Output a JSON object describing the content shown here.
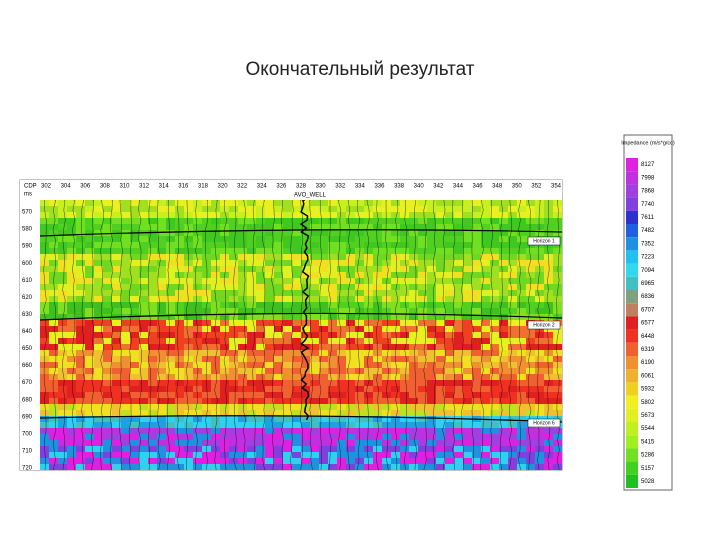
{
  "title": "Окончательный результат",
  "section": {
    "cdp_label": "CDP",
    "time_unit": "ms",
    "cdp_labels": [
      "302",
      "304",
      "306",
      "308",
      "310",
      "312",
      "314",
      "316",
      "318",
      "320",
      "322",
      "324",
      "326",
      "328",
      "330",
      "332",
      "334",
      "336",
      "338",
      "340",
      "342",
      "344",
      "346",
      "348",
      "350",
      "352",
      "354"
    ],
    "time_labels": [
      "570",
      "580",
      "590",
      "600",
      "610",
      "620",
      "630",
      "640",
      "650",
      "660",
      "670",
      "680",
      "690",
      "700",
      "710",
      "720"
    ],
    "well_label": "AVO_WELL",
    "horizons": [
      "Horizon 1",
      "Horizon 2",
      "Horizon 6"
    ]
  },
  "colorbar": {
    "title": "Impedance (m/s*g/cc)",
    "labels": [
      "8127",
      "7998",
      "7868",
      "7740",
      "7611",
      "7482",
      "7352",
      "7223",
      "7094",
      "6965",
      "6836",
      "6707",
      "6577",
      "6448",
      "6319",
      "6190",
      "6061",
      "5932",
      "5802",
      "5673",
      "5544",
      "5415",
      "5286",
      "5157",
      "5028"
    ]
  }
}
